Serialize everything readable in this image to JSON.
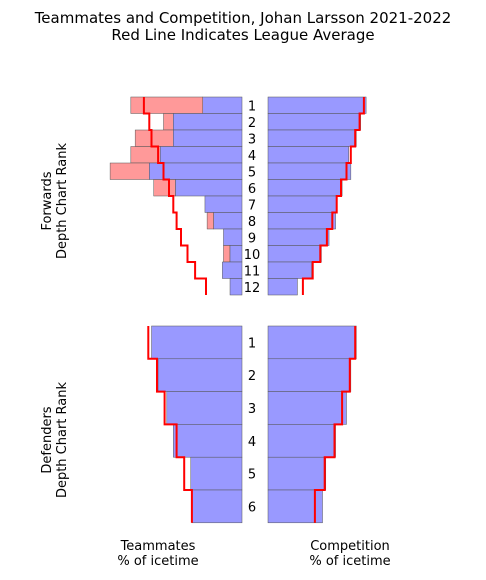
{
  "chart_data": {
    "type": "bar",
    "title": "Teammates and Competition, Johan Larsson 2021-2022",
    "subtitle": "Red Line Indicates League Average",
    "colors": {
      "bar": "#9999ff",
      "excess": "#ff9999",
      "league_line": "#ff0000"
    },
    "panels": [
      {
        "ylabel": [
          "Forwards",
          "Depth Chart Rank"
        ],
        "ranks": [
          "1",
          "2",
          "3",
          "4",
          "5",
          "6",
          "7",
          "8",
          "9",
          "10",
          "11",
          "12"
        ],
        "teammates": [
          3.6,
          6.3,
          6.3,
          7.5,
          8.5,
          6.1,
          3.4,
          2.6,
          1.7,
          1.1,
          1.8,
          1.1
        ],
        "teammates_excess": [
          10.2,
          7.2,
          9.8,
          10.2,
          12.1,
          8.1,
          0,
          3.2,
          0,
          1.7,
          0,
          0
        ],
        "teammates_league": [
          9.0,
          8.5,
          8.3,
          7.7,
          7.2,
          6.7,
          6.3,
          6.0,
          5.6,
          5.0,
          4.3,
          3.3
        ],
        "competition": [
          9.0,
          8.5,
          8.1,
          7.4,
          7.6,
          6.8,
          6.3,
          6.2,
          5.6,
          4.9,
          4.0,
          2.7
        ],
        "competition_league": [
          8.8,
          8.4,
          8.0,
          7.6,
          7.2,
          6.7,
          6.3,
          5.9,
          5.4,
          4.8,
          4.1,
          3.2
        ]
      },
      {
        "ylabel": [
          "Defenders",
          "Depth Chart Rank"
        ],
        "ranks": [
          "1",
          "2",
          "3",
          "4",
          "5",
          "6"
        ],
        "teammates": [
          8.3,
          7.7,
          6.9,
          6.3,
          4.7,
          4.6
        ],
        "teammates_excess": [
          0,
          0,
          0,
          0,
          0,
          0
        ],
        "teammates_league": [
          8.6,
          7.8,
          7.1,
          6.0,
          5.3,
          4.6
        ],
        "competition": [
          8.1,
          7.6,
          7.2,
          6.2,
          5.3,
          5.0
        ],
        "competition_league": [
          8.0,
          7.5,
          6.8,
          6.1,
          5.2,
          4.3
        ]
      }
    ],
    "xlabel_left": [
      "Teammates",
      "% of icetime"
    ],
    "xlabel_right": [
      "Competition",
      "% of icetime"
    ]
  }
}
